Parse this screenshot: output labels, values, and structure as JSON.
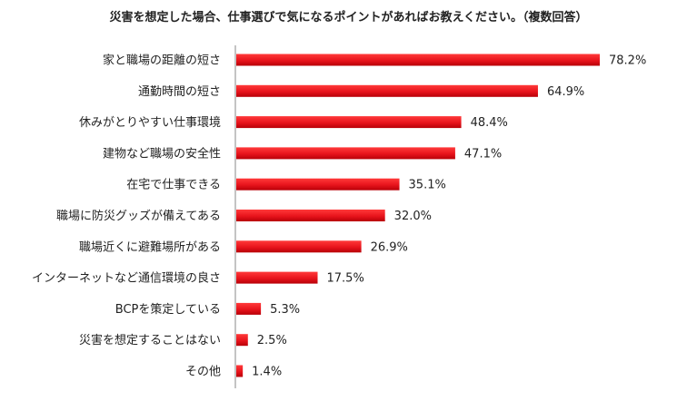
{
  "chart_data": {
    "type": "bar",
    "orientation": "horizontal",
    "title": "災害を想定した場合、仕事選びで気になるポイントがあればお教えください。（複数回答）",
    "categories": [
      "家と職場の距離の短さ",
      "通勤時間の短さ",
      "休みがとりやすい仕事環境",
      "建物など職場の安全性",
      "在宅で仕事できる",
      "職場に防災グッズが備えてある",
      "職場近くに避難場所がある",
      "インターネットなど通信環境の良さ",
      "BCPを策定している",
      "災害を想定することはない",
      "その他"
    ],
    "values": [
      78.2,
      64.9,
      48.4,
      47.1,
      35.1,
      32.0,
      26.9,
      17.5,
      5.3,
      2.5,
      1.4
    ],
    "value_labels": [
      "78.2%",
      "64.9%",
      "48.4%",
      "47.1%",
      "35.1%",
      "32.0%",
      "26.9%",
      "17.5%",
      "5.3%",
      "2.5%",
      "1.4%"
    ],
    "bar_color": "#e8141c",
    "grid": false,
    "xlim": [
      0,
      100
    ]
  }
}
